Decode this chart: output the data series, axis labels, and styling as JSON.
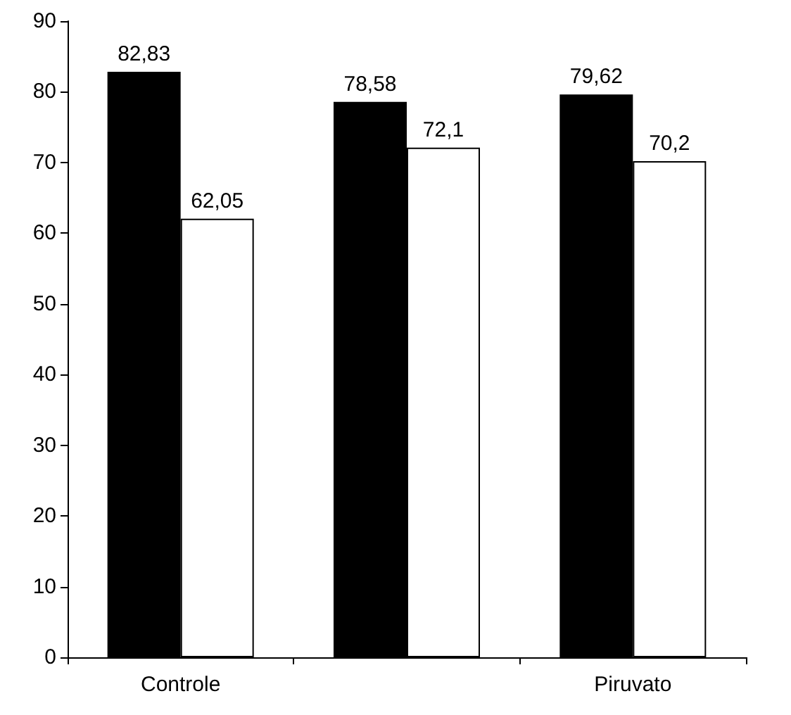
{
  "chart_data": {
    "type": "bar",
    "categories": [
      "Controle",
      null,
      "Piruvato"
    ],
    "series": [
      {
        "color": "#000000",
        "values": [
          82.83,
          78.58,
          79.62
        ],
        "value_labels": [
          "82,83",
          "78,58",
          "79,62"
        ]
      },
      {
        "color": "#ffffff",
        "values": [
          62.05,
          72.1,
          70.2
        ],
        "value_labels": [
          "62,05",
          "72,1",
          "70,2"
        ]
      }
    ],
    "ylim": [
      0,
      90
    ],
    "yticks": [
      0,
      10,
      20,
      30,
      40,
      50,
      60,
      70,
      80,
      90
    ],
    "grid": false
  }
}
